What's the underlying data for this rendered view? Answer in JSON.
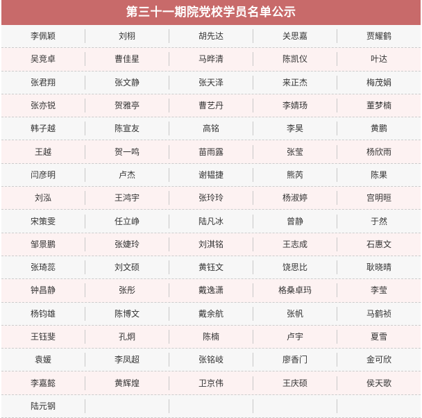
{
  "title": "第三十一期院党校学员名单公示",
  "colors": {
    "header_bg": "#c86a6a",
    "row_odd_bg": "#f7f7f7",
    "row_even_bg": "#fdf2f2"
  },
  "rows": [
    [
      "李佩颖",
      "刘栩",
      "胡先达",
      "关思嘉",
      "贾耀鹤"
    ],
    [
      "吴竞卓",
      "曹佳星",
      "马晔清",
      "陈凯仪",
      "叶达"
    ],
    [
      "张君翔",
      "张文静",
      "张天泽",
      "来正杰",
      "梅茂娟"
    ],
    [
      "张亦锐",
      "贺雅亭",
      "曹艺丹",
      "李婧玚",
      "董梦楠"
    ],
    [
      "韩子越",
      "陈宣友",
      "高铭",
      "李昊",
      "黄鹏"
    ],
    [
      "王越",
      "贺一鸣",
      "苗雨露",
      "张莹",
      "杨欣雨"
    ],
    [
      "闫彦明",
      "卢杰",
      "谢韫捷",
      "熊芮",
      "陈果"
    ],
    [
      "刘泓",
      "王鸿宇",
      "张玲玲",
      "杨淑婷",
      "宫明晅"
    ],
    [
      "宋策雯",
      "任立峥",
      "陆凡冰",
      "曾静",
      "于然"
    ],
    [
      "邹景鹏",
      "张婕玲",
      "刘淇铭",
      "王志成",
      "石惠文"
    ],
    [
      "张琦蕊",
      "刘文硕",
      "黄钰文",
      "饶思比",
      "耿晓晴"
    ],
    [
      "钟昌静",
      "张彤",
      "戴逸潇",
      "格桑卓玛",
      "李莹"
    ],
    [
      "杨钧雄",
      "陈博文",
      "戴余航",
      "张帆",
      "马鹤祯"
    ],
    [
      "王钰斐",
      "孔炯",
      "陈楠",
      "卢宇",
      "夏雪"
    ],
    [
      "袁媛",
      "李凤超",
      "张铭岐",
      "廖香门",
      "金可欣"
    ],
    [
      "李嘉懿",
      "黄辉煌",
      "卫京伟",
      "王庆硕",
      "侯天歌"
    ],
    [
      "陆元钢",
      "",
      "",
      "",
      ""
    ]
  ]
}
